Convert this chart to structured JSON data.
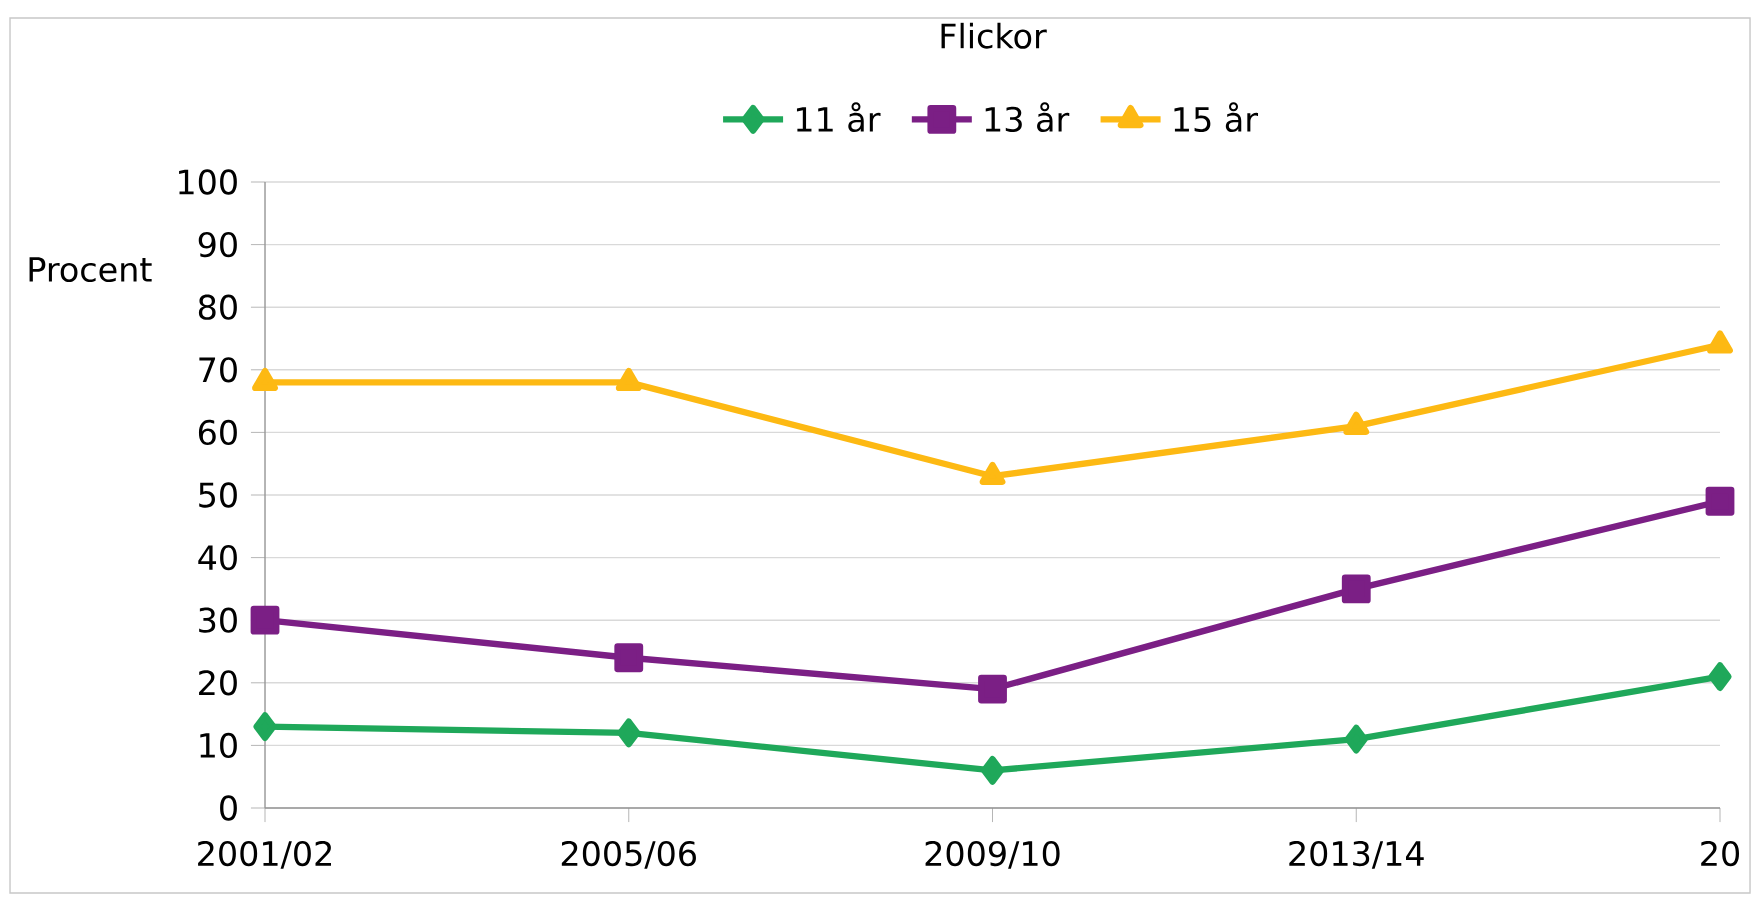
{
  "chart_data": {
    "type": "line",
    "title": "Flickor",
    "ylabel": "Procent",
    "categories": [
      "2001/02",
      "2005/06",
      "2009/10",
      "2013/14",
      "20"
    ],
    "series": [
      {
        "name": "11 år",
        "color": "#1fa85a",
        "marker": "diamond",
        "values": [
          13,
          12,
          6,
          11,
          21
        ]
      },
      {
        "name": "13 år",
        "color": "#7b1f85",
        "marker": "square",
        "values": [
          30,
          24,
          19,
          35,
          49
        ]
      },
      {
        "name": "15 år",
        "color": "#fdb913",
        "marker": "triangle",
        "values": [
          68,
          68,
          53,
          61,
          74
        ]
      }
    ],
    "ylim": [
      0,
      100
    ],
    "yticks": [
      0,
      10,
      20,
      30,
      40,
      50,
      60,
      70,
      80,
      90,
      100
    ],
    "grid": "y",
    "legend": "top",
    "line_style": "solid"
  }
}
